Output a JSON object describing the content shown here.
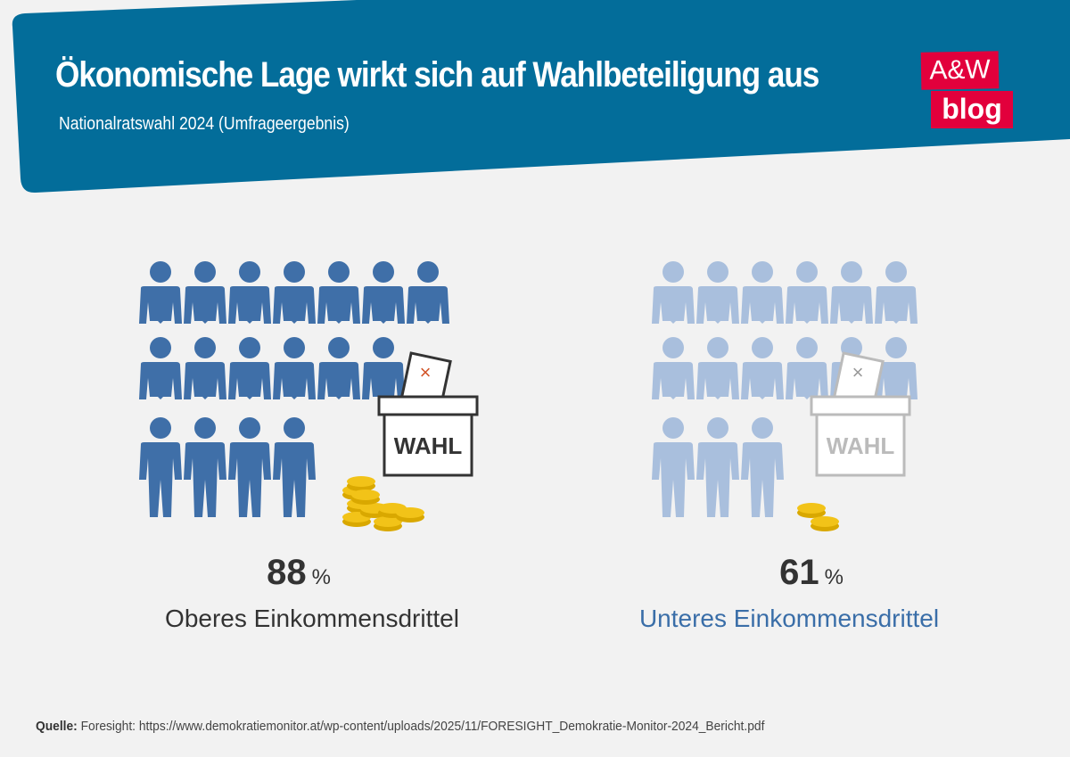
{
  "header": {
    "title": "Ökonomische Lage wirkt sich auf Wahlbeteiligung aus",
    "subtitle": "Nationalratswahl 2024 (Umfrageergebnis)",
    "logo_line1": "A&W",
    "logo_line2": "blog",
    "banner_color": "#036d9a",
    "logo_color": "#e2003c"
  },
  "groups": [
    {
      "value": "88",
      "unit": "%",
      "label": "Oberes Einkommensdrittel",
      "turnout_percent": 88,
      "icon_color": "#3f6fa8",
      "label_color": "#333333",
      "ballot_box_text": "WAHL"
    },
    {
      "value": "61",
      "unit": "%",
      "label": "Unteres Einkommensdrittel",
      "turnout_percent": 61,
      "icon_color": "#a9bfdd",
      "label_color": "#3a6ea8",
      "ballot_box_text": "WAHL"
    }
  ],
  "footer": {
    "source_label": "Quelle:",
    "source_text": "Foresight: https://www.demokratiemonitor.at/wp-content/uploads/2025/11/FORESIGHT_Demokratie-Monitor-2024_Bericht.pdf"
  }
}
